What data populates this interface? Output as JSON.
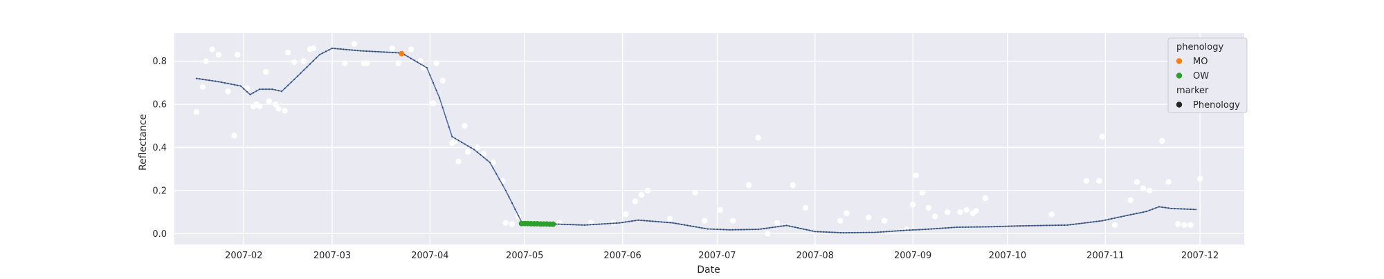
{
  "chart_data": {
    "type": "scatter",
    "title": "",
    "xlabel": "Date",
    "ylabel": "Reflectance",
    "xlim": [
      "2007-01-10",
      "2007-12-15"
    ],
    "ylim": [
      -0.05,
      0.93
    ],
    "x_ticks": [
      "2007-02-01",
      "2007-03-01",
      "2007-04-01",
      "2007-05-01",
      "2007-06-01",
      "2007-07-01",
      "2007-08-01",
      "2007-09-01",
      "2007-10-01",
      "2007-11-01",
      "2007-12-01"
    ],
    "x_tick_labels": [
      "2007-02",
      "2007-03",
      "2007-04",
      "2007-05",
      "2007-06",
      "2007-07",
      "2007-08",
      "2007-09",
      "2007-10",
      "2007-11",
      "2007-12"
    ],
    "y_ticks": [
      0.0,
      0.2,
      0.4,
      0.6,
      0.8
    ],
    "y_tick_labels": [
      "0.0",
      "0.2",
      "0.4",
      "0.6",
      "0.8"
    ],
    "grid": true,
    "legend": {
      "placement": "top-right",
      "groups": [
        {
          "title": "phenology",
          "entries": [
            {
              "label": "MO",
              "color": "#ff7f0e"
            },
            {
              "label": "OW",
              "color": "#2ca02c"
            }
          ]
        },
        {
          "title": "marker",
          "entries": [
            {
              "label": "Phenology",
              "color": "#262626"
            }
          ]
        }
      ]
    },
    "colors": {
      "background": "#eaeaf2",
      "grid": "#ffffff",
      "line": "#4c72b0",
      "line_marker": "#3a4a5a",
      "raw_points": "#ffffff"
    },
    "series": [
      {
        "kind": "smoothed-line",
        "x": [
          "2007-01-17",
          "2007-01-24",
          "2007-01-31",
          "2007-02-03",
          "2007-02-06",
          "2007-02-10",
          "2007-02-13",
          "2007-02-18",
          "2007-02-25",
          "2007-03-01",
          "2007-03-10",
          "2007-03-23",
          "2007-03-31",
          "2007-04-04",
          "2007-04-08",
          "2007-04-15",
          "2007-04-20",
          "2007-04-25",
          "2007-04-30",
          "2007-05-10",
          "2007-05-20",
          "2007-05-31",
          "2007-06-06",
          "2007-06-17",
          "2007-06-28",
          "2007-07-05",
          "2007-07-14",
          "2007-07-23",
          "2007-08-01",
          "2007-08-10",
          "2007-08-20",
          "2007-08-30",
          "2007-09-05",
          "2007-09-15",
          "2007-09-25",
          "2007-10-05",
          "2007-10-20",
          "2007-10-31",
          "2007-11-08",
          "2007-11-14",
          "2007-11-18",
          "2007-11-22",
          "2007-11-30"
        ],
        "y": [
          0.72,
          0.705,
          0.685,
          0.645,
          0.67,
          0.67,
          0.66,
          0.73,
          0.83,
          0.86,
          0.848,
          0.838,
          0.77,
          0.63,
          0.45,
          0.39,
          0.33,
          0.2,
          0.055,
          0.045,
          0.04,
          0.05,
          0.063,
          0.05,
          0.022,
          0.018,
          0.02,
          0.038,
          0.01,
          0.004,
          0.006,
          0.016,
          0.02,
          0.03,
          0.032,
          0.036,
          0.04,
          0.06,
          0.085,
          0.103,
          0.125,
          0.117,
          0.112
        ]
      },
      {
        "kind": "raw-observations",
        "x": [
          "2007-01-17",
          "2007-01-19",
          "2007-01-20",
          "2007-01-22",
          "2007-01-24",
          "2007-01-27",
          "2007-01-29",
          "2007-01-30",
          "2007-02-02",
          "2007-02-04",
          "2007-02-05",
          "2007-02-06",
          "2007-02-08",
          "2007-02-09",
          "2007-02-11",
          "2007-02-12",
          "2007-02-14",
          "2007-02-15",
          "2007-02-17",
          "2007-02-20",
          "2007-02-22",
          "2007-02-23",
          "2007-03-05",
          "2007-03-08",
          "2007-03-11",
          "2007-03-12",
          "2007-03-20",
          "2007-03-22",
          "2007-03-26",
          "2007-03-29",
          "2007-03-30",
          "2007-04-02",
          "2007-04-03",
          "2007-04-05",
          "2007-04-08",
          "2007-04-09",
          "2007-04-10",
          "2007-04-12",
          "2007-04-13",
          "2007-04-16",
          "2007-04-18",
          "2007-04-21",
          "2007-04-24",
          "2007-04-25",
          "2007-04-27",
          "2007-04-29",
          "2007-05-12",
          "2007-05-22",
          "2007-05-29",
          "2007-06-02",
          "2007-06-05",
          "2007-06-07",
          "2007-06-09",
          "2007-06-16",
          "2007-06-24",
          "2007-06-27",
          "2007-07-02",
          "2007-07-06",
          "2007-07-11",
          "2007-07-14",
          "2007-07-17",
          "2007-07-20",
          "2007-07-25",
          "2007-07-29",
          "2007-08-09",
          "2007-08-11",
          "2007-08-18",
          "2007-08-23",
          "2007-08-30",
          "2007-09-01",
          "2007-09-02",
          "2007-09-04",
          "2007-09-06",
          "2007-09-08",
          "2007-09-12",
          "2007-09-16",
          "2007-09-18",
          "2007-09-20",
          "2007-09-21",
          "2007-09-24",
          "2007-10-15",
          "2007-10-26",
          "2007-10-30",
          "2007-10-31",
          "2007-11-04",
          "2007-11-09",
          "2007-11-11",
          "2007-11-13",
          "2007-11-15",
          "2007-11-19",
          "2007-11-21",
          "2007-11-24",
          "2007-11-26",
          "2007-11-28",
          "2007-12-01"
        ],
        "y": [
          0.565,
          0.68,
          0.8,
          0.855,
          0.83,
          0.66,
          0.455,
          0.83,
          0.675,
          0.59,
          0.6,
          0.59,
          0.75,
          0.615,
          0.6,
          0.58,
          0.57,
          0.84,
          0.795,
          0.8,
          0.855,
          0.86,
          0.79,
          0.88,
          0.79,
          0.79,
          0.86,
          0.79,
          0.855,
          0.8,
          0.77,
          0.605,
          0.79,
          0.71,
          0.42,
          0.43,
          0.335,
          0.5,
          0.38,
          0.4,
          0.37,
          0.33,
          0.245,
          0.05,
          0.045,
          0.08,
          0.05,
          0.05,
          0.05,
          0.09,
          0.15,
          0.18,
          0.2,
          0.07,
          0.19,
          0.06,
          0.11,
          0.06,
          0.225,
          0.445,
          0.0,
          0.05,
          0.225,
          0.12,
          0.06,
          0.095,
          0.075,
          0.06,
          0.02,
          0.135,
          0.27,
          0.19,
          0.12,
          0.08,
          0.1,
          0.1,
          0.11,
          0.095,
          0.105,
          0.165,
          0.09,
          0.245,
          0.245,
          0.45,
          0.04,
          0.155,
          0.24,
          0.21,
          0.2,
          0.43,
          0.24,
          0.045,
          0.04,
          0.04,
          0.255
        ]
      },
      {
        "kind": "phenology",
        "name": "MO",
        "color": "#ff7f0e",
        "x": [
          "2007-03-23"
        ],
        "y": [
          0.835
        ]
      },
      {
        "kind": "phenology",
        "name": "OW",
        "color": "#2ca02c",
        "x": [
          "2007-04-30",
          "2007-05-01",
          "2007-05-02",
          "2007-05-03",
          "2007-05-04",
          "2007-05-05",
          "2007-05-06",
          "2007-05-07",
          "2007-05-08",
          "2007-05-09",
          "2007-05-10"
        ],
        "y": [
          0.047,
          0.047,
          0.047,
          0.046,
          0.046,
          0.046,
          0.045,
          0.045,
          0.045,
          0.044,
          0.044
        ]
      }
    ]
  }
}
